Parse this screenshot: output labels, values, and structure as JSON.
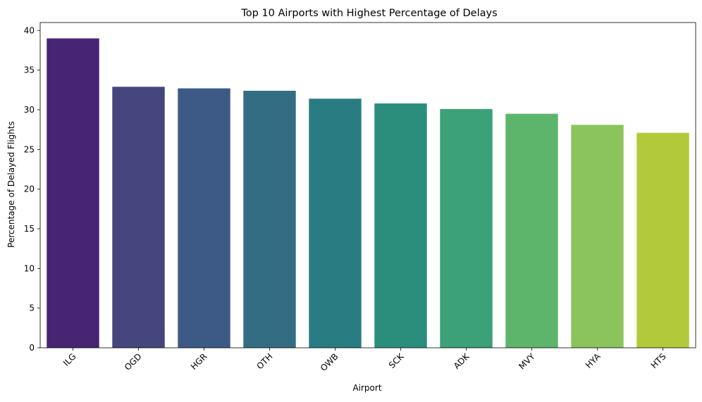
{
  "chart_data": {
    "type": "bar",
    "title": "Top 10 Airports with Highest Percentage of Delays",
    "xlabel": "Airport",
    "ylabel": "Percentage of Delayed Flights",
    "categories": [
      "ILG",
      "OGD",
      "HGR",
      "OTH",
      "OWB",
      "SCK",
      "ADK",
      "MVY",
      "HYA",
      "HTS"
    ],
    "values": [
      39.0,
      32.9,
      32.7,
      32.4,
      31.4,
      30.8,
      30.1,
      29.5,
      28.1,
      27.1
    ],
    "colors": [
      "#482475",
      "#46467e",
      "#3d5a87",
      "#336d84",
      "#2a7c83",
      "#2b8d7c",
      "#3ca079",
      "#5db56c",
      "#8bc45c",
      "#b2c93a"
    ],
    "ylim": [
      0,
      41
    ],
    "yticks": [
      0,
      5,
      10,
      15,
      20,
      25,
      30,
      35,
      40
    ],
    "grid": false,
    "legend": false
  }
}
